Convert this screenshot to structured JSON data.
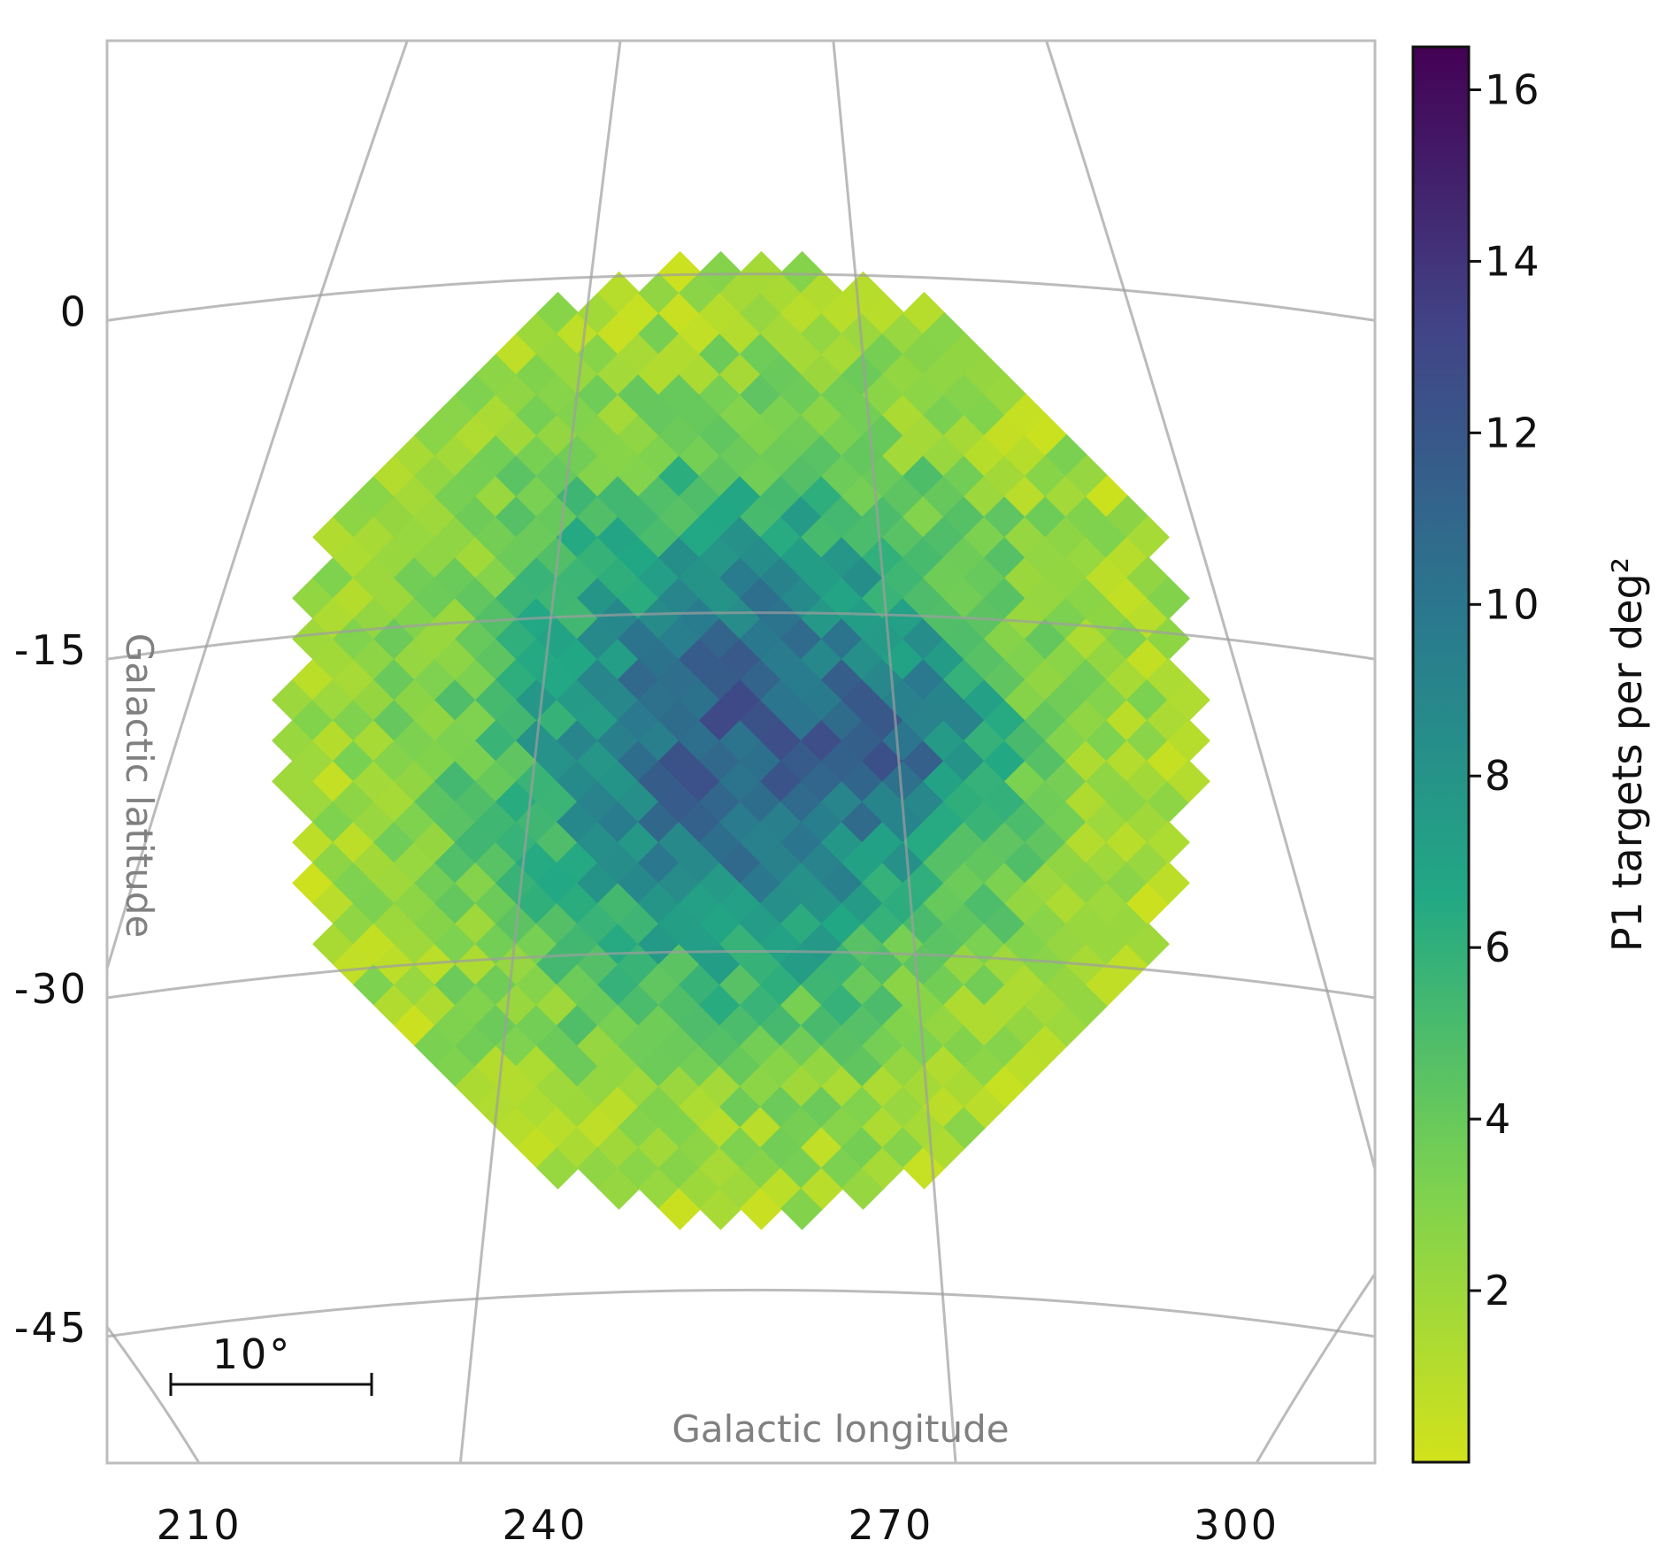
{
  "chart_data": {
    "type": "heatmap",
    "projection": "gnomonic (zenithal) sky map",
    "x_axis": {
      "label": "Galactic longitude",
      "unit": "deg",
      "ticks": [
        210,
        240,
        270,
        300
      ],
      "range": [
        202,
        312
      ]
    },
    "y_axis": {
      "label": "Galactic latitude",
      "unit": "deg",
      "ticks": [
        0,
        -15,
        -30,
        -45
      ],
      "range": [
        -51,
        12
      ]
    },
    "colorbar": {
      "label": "P1 targets per deg²",
      "colormap": "viridis_r",
      "range": [
        0,
        16.5
      ],
      "ticks": [
        2,
        4,
        6,
        8,
        10,
        12,
        14,
        16
      ],
      "colors": [
        "#d2e21b",
        "#7ad151",
        "#22a884",
        "#2a788e",
        "#414487",
        "#440154"
      ]
    },
    "scale_bar": {
      "label": "10°"
    },
    "field": {
      "center": [
        257,
        -19
      ],
      "peak_density": 13.5,
      "edge_density": 1.2,
      "peak_location": [
        272,
        -19
      ],
      "empty_cells": [
        [
          301,
          -10
        ],
        [
          302,
          -33
        ]
      ]
    },
    "grid": true,
    "graticule_lon": [
      210,
      240,
      270,
      300
    ],
    "graticule_lat": [
      0,
      -15,
      -30,
      -45
    ]
  }
}
